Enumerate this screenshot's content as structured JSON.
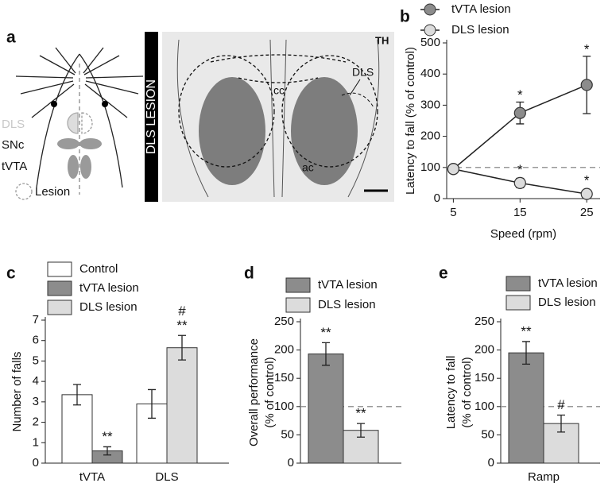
{
  "panel_a": {
    "label": "a",
    "diagram_labels": [
      "DLS",
      "SNc",
      "tVTA"
    ],
    "lesion_label": "Lesion",
    "section_title": "DLS LESION",
    "stain": "TH",
    "regions": [
      "cc",
      "DLS",
      "ac"
    ]
  },
  "chart_data": [
    {
      "panel": "b",
      "type": "line",
      "ylabel": "Latency to fall (% of control)",
      "xlabel": "Speed (rpm)",
      "x": [
        5,
        15,
        25
      ],
      "xlim": [
        4,
        27
      ],
      "xticks": [
        5,
        15,
        25
      ],
      "ylim": [
        0,
        500
      ],
      "yticks": [
        0,
        100,
        200,
        300,
        400,
        500
      ],
      "reference_line": 100,
      "legend": "top",
      "series": [
        {
          "name": "tVTA lesion",
          "color": "#8c8c8c",
          "values": [
            95,
            275,
            365
          ],
          "errors": [
            8,
            35,
            92
          ],
          "sig": [
            null,
            "*",
            "*"
          ]
        },
        {
          "name": "DLS lesion",
          "color": "#dcdcdc",
          "values": [
            95,
            50,
            15
          ],
          "errors": [
            8,
            15,
            10
          ],
          "sig": [
            null,
            "*",
            "*"
          ]
        }
      ]
    },
    {
      "panel": "c",
      "type": "bar",
      "ylabel": "Number of falls",
      "categories": [
        "tVTA",
        "DLS"
      ],
      "ylim": [
        0,
        7
      ],
      "yticks": [
        0,
        1,
        2,
        3,
        4,
        5,
        6,
        7
      ],
      "legend": "top-left",
      "series": [
        {
          "name": "Control",
          "color": "#ffffff",
          "values": [
            3.35,
            2.9
          ],
          "errors": [
            0.5,
            0.7
          ],
          "sig": [
            null,
            null
          ]
        },
        {
          "name": "tVTA lesion",
          "color": "#8c8c8c",
          "values": [
            0.6,
            null
          ],
          "errors": [
            0.2,
            null
          ],
          "sig": [
            [
              "**"
            ],
            null
          ]
        },
        {
          "name": "DLS lesion",
          "color": "#dcdcdc",
          "values": [
            null,
            5.65
          ],
          "errors": [
            null,
            0.6
          ],
          "sig": [
            null,
            [
              "**",
              "#"
            ]
          ]
        }
      ]
    },
    {
      "panel": "d",
      "type": "bar",
      "ylabel": [
        "Overall performance",
        "(% of control)"
      ],
      "categories": [
        null
      ],
      "ylim": [
        0,
        250
      ],
      "yticks": [
        0,
        50,
        100,
        150,
        200,
        250
      ],
      "reference_line": 100,
      "legend": "top",
      "series": [
        {
          "name": "tVTA lesion",
          "color": "#8c8c8c",
          "values": [
            193
          ],
          "errors": [
            20
          ],
          "sig": [
            [
              "**"
            ]
          ]
        },
        {
          "name": "DLS lesion",
          "color": "#dcdcdc",
          "values": [
            58
          ],
          "errors": [
            12
          ],
          "sig": [
            [
              "**"
            ]
          ]
        }
      ]
    },
    {
      "panel": "e",
      "type": "bar",
      "ylabel": [
        "Latency to fall",
        "(% of control)"
      ],
      "categories": [
        "Ramp"
      ],
      "ylim": [
        0,
        250
      ],
      "yticks": [
        0,
        50,
        100,
        150,
        200,
        250
      ],
      "reference_line": 100,
      "legend": "top",
      "series": [
        {
          "name": "tVTA lesion",
          "color": "#8c8c8c",
          "values": [
            195
          ],
          "errors": [
            20
          ],
          "sig": [
            [
              "**"
            ]
          ]
        },
        {
          "name": "DLS lesion",
          "color": "#dcdcdc",
          "values": [
            70
          ],
          "errors": [
            15
          ],
          "sig": [
            [
              "#"
            ]
          ]
        }
      ]
    }
  ]
}
